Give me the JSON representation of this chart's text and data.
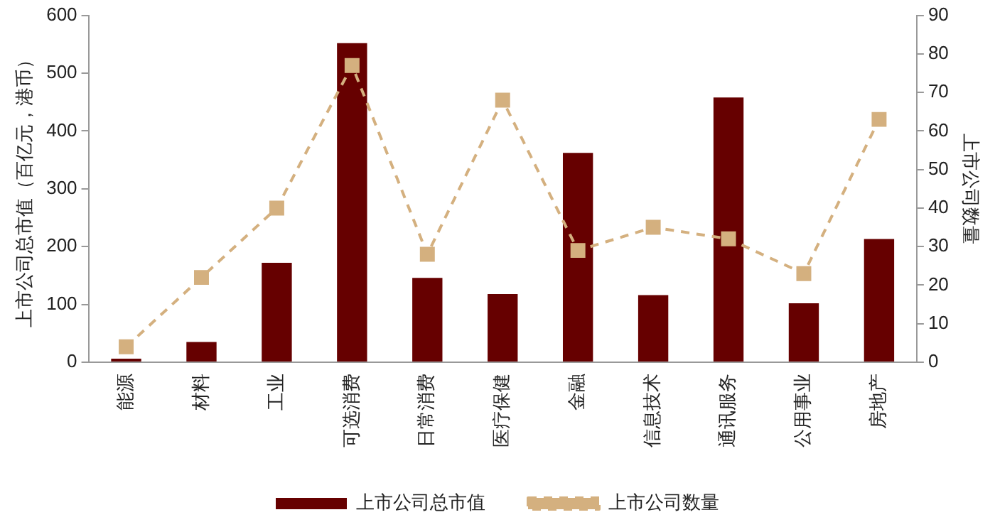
{
  "chart_data": {
    "type": "bar",
    "categories": [
      "能源",
      "材料",
      "工业",
      "可选消费",
      "日常消费",
      "医疗保健",
      "金融",
      "信息技术",
      "通讯服务",
      "公用事业",
      "房地产"
    ],
    "ylabel": "上市公司总市值（百亿元，港币）",
    "y2label": "上市公司数量",
    "ylim": [
      0,
      600
    ],
    "yticks": [
      0,
      100,
      200,
      300,
      400,
      500,
      600
    ],
    "y2lim": [
      0,
      90
    ],
    "y2ticks": [
      0,
      10,
      20,
      30,
      40,
      50,
      60,
      70,
      80,
      90
    ],
    "series": [
      {
        "name": "上市公司总市值",
        "color": "#660000",
        "values": [
          6,
          35,
          172,
          552,
          146,
          118,
          362,
          116,
          458,
          102,
          213
        ]
      },
      {
        "name": "上市公司数量",
        "type": "line",
        "axis": "y2",
        "color": "#d4b07f",
        "marker": "square",
        "line_style": "dashed",
        "values": [
          4,
          22,
          40,
          77,
          28,
          68,
          29,
          35,
          32,
          23,
          63
        ]
      }
    ],
    "grid": false,
    "legend": "bottom"
  }
}
